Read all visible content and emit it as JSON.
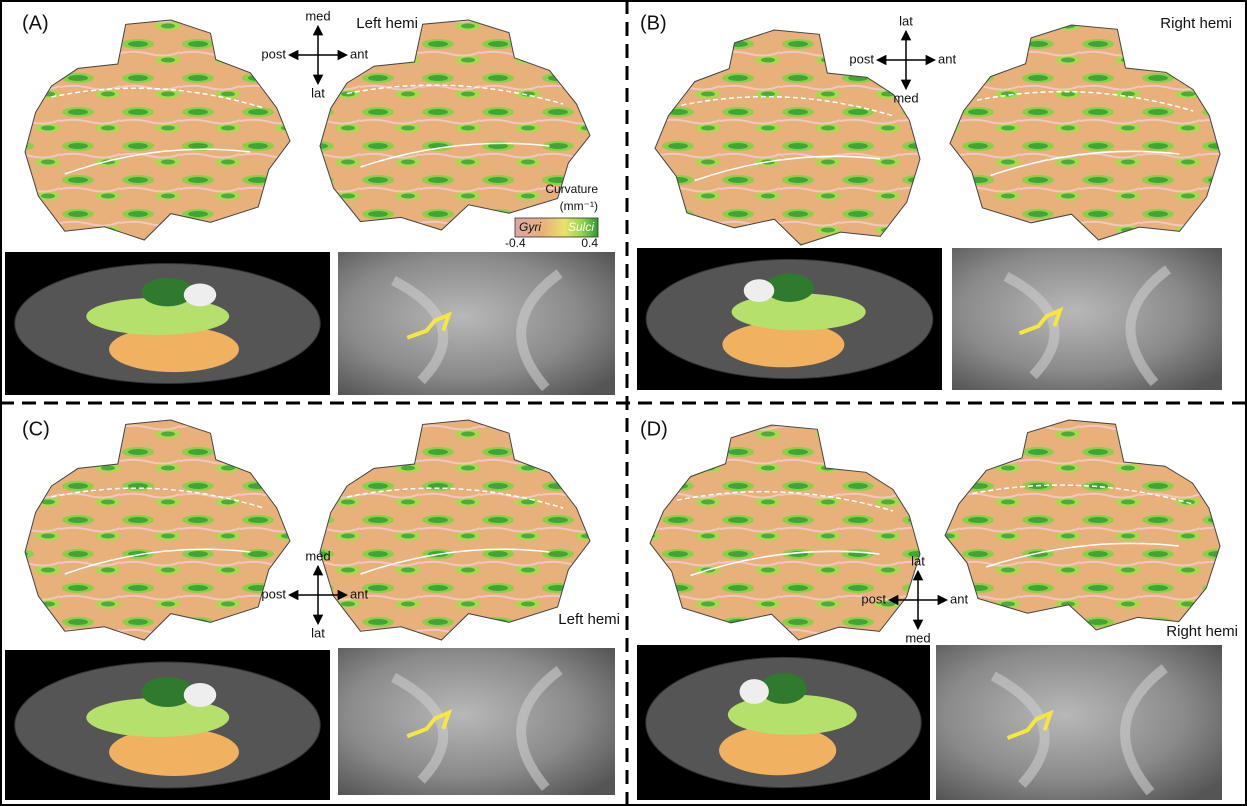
{
  "panels": [
    {
      "label": "(A)",
      "orientation": {
        "top": "med",
        "left": "post",
        "right": "ant",
        "bottom": "lat"
      },
      "hemisphere": "Left hemi"
    },
    {
      "label": "(B)",
      "orientation": {
        "top": "lat",
        "left": "post",
        "right": "ant",
        "bottom": "med"
      },
      "hemisphere": "Right hemi"
    },
    {
      "label": "(C)",
      "orientation": {
        "top": "med",
        "left": "post",
        "right": "ant",
        "bottom": "lat"
      },
      "hemisphere": "Left hemi"
    },
    {
      "label": "(D)",
      "orientation": {
        "top": "lat",
        "left": "post",
        "right": "ant",
        "bottom": "med"
      },
      "hemisphere": "Right hemi"
    }
  ],
  "colorbar": {
    "title": "Curvature",
    "unit": "(mm⁻¹)",
    "low_label": "Gyri",
    "high_label": "Sulci",
    "min": -0.4,
    "max": 0.4
  }
}
